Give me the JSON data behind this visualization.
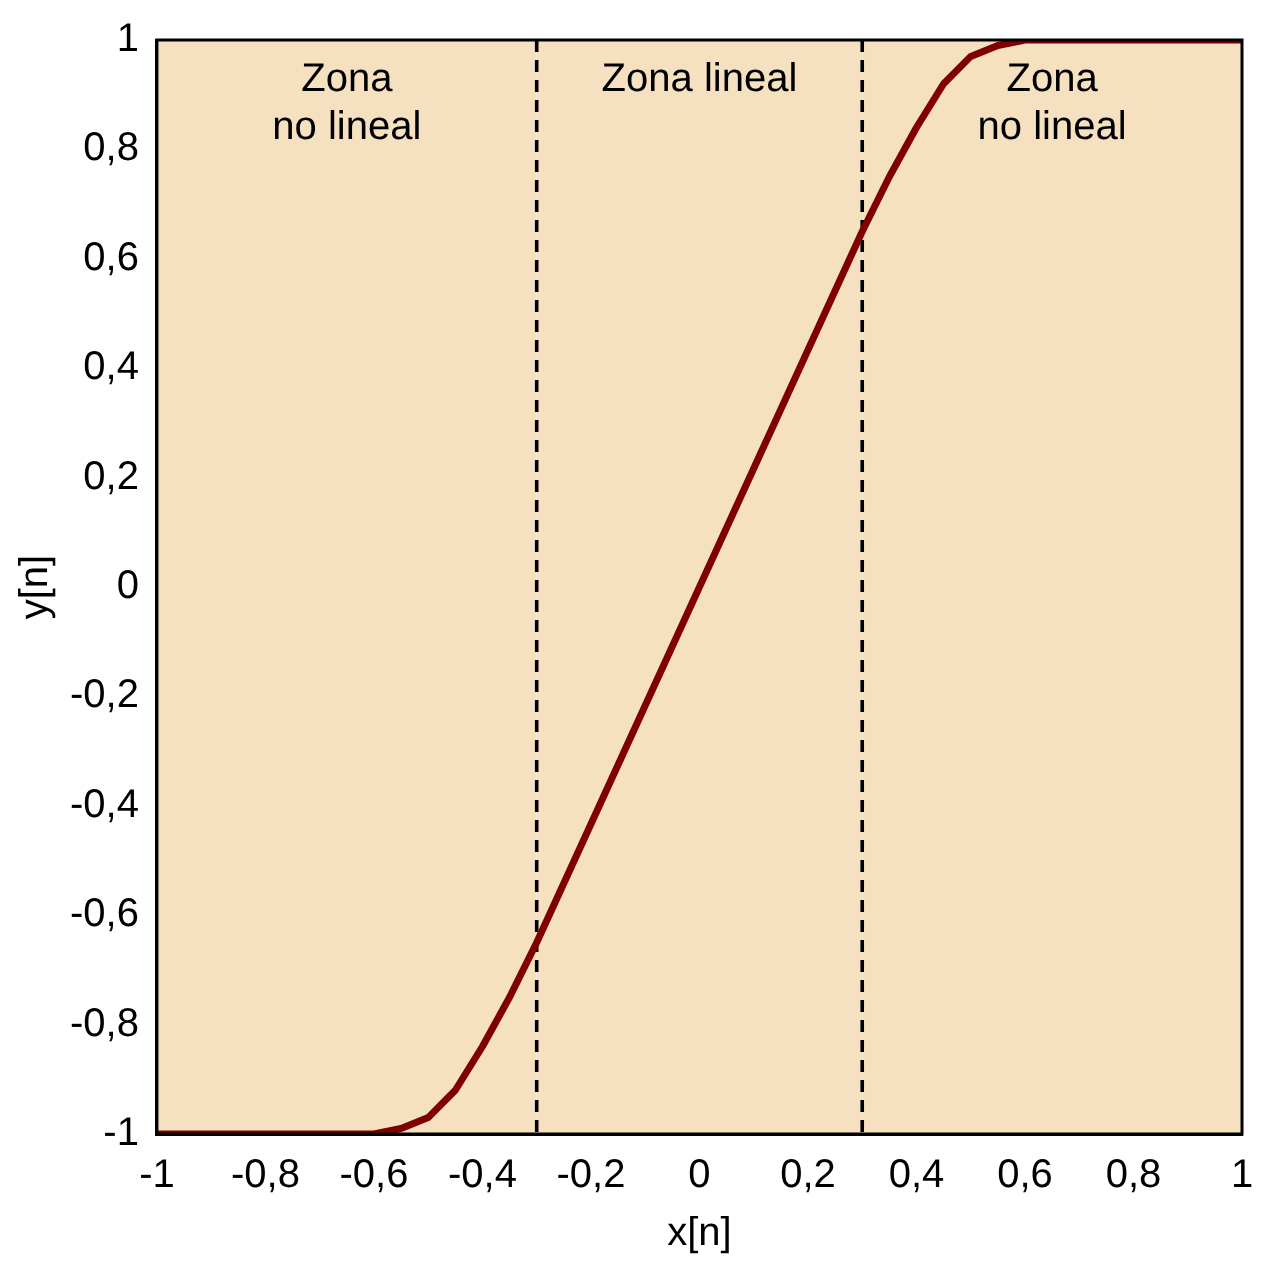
{
  "chart_data": {
    "type": "line",
    "xlabel": "x[n]",
    "ylabel": "y[n]",
    "x": [
      -1,
      -0.6,
      -0.55,
      -0.5,
      -0.45,
      -0.4,
      -0.35,
      -0.3,
      0.3,
      0.35,
      0.4,
      0.45,
      0.5,
      0.55,
      0.6,
      1
    ],
    "series": [
      {
        "color": "#800000",
        "values": [
          -1,
          -1,
          -0.99,
          -0.97,
          -0.92,
          -0.84,
          -0.75,
          -0.65,
          0.65,
          0.75,
          0.84,
          0.92,
          0.97,
          0.99,
          1,
          1
        ]
      }
    ],
    "xlim": [
      -1,
      1
    ],
    "ylim": [
      -1,
      1
    ],
    "xticks": [
      -1,
      {
        "value": -0.8,
        "label": "-0,8"
      },
      {
        "value": -0.6,
        "label": "-0,6"
      },
      {
        "value": -0.4,
        "label": "-0,4"
      },
      {
        "value": -0.2,
        "label": "-0,2"
      },
      0,
      {
        "value": 0.2,
        "label": "0,2"
      },
      {
        "value": 0.4,
        "label": "0,4"
      },
      {
        "value": 0.6,
        "label": "0,6"
      },
      {
        "value": 0.8,
        "label": "0,8"
      },
      1
    ],
    "yticks": [
      -1,
      {
        "value": -0.8,
        "label": "-0,8"
      },
      {
        "value": -0.6,
        "label": "-0,6"
      },
      {
        "value": -0.4,
        "label": "-0,4"
      },
      {
        "value": -0.2,
        "label": "-0,2"
      },
      0,
      {
        "value": 0.2,
        "label": "0,2"
      },
      {
        "value": 0.4,
        "label": "0,4"
      },
      {
        "value": 0.6,
        "label": "0,6"
      },
      {
        "value": 0.8,
        "label": "0,8"
      },
      1
    ],
    "bands": [
      {
        "axis": "x",
        "from": -1,
        "to": -0.3,
        "label": "Zona\nno lineal",
        "color": "#f5e0c0"
      },
      {
        "axis": "x",
        "from": -0.3,
        "to": 0.3,
        "label": "Zona lineal",
        "color": "#f5e0c0"
      },
      {
        "axis": "x",
        "from": 0.3,
        "to": 1,
        "label": "Zona\nno lineal",
        "color": "#f5e0c0"
      }
    ],
    "ref_lines": [
      {
        "axis": "x",
        "value": -0.3,
        "line_style": "dashed"
      },
      {
        "axis": "x",
        "value": 0.3,
        "line_style": "dashed"
      }
    ],
    "grid": false,
    "legend": false,
    "marker": "none",
    "line_style": "solid"
  }
}
